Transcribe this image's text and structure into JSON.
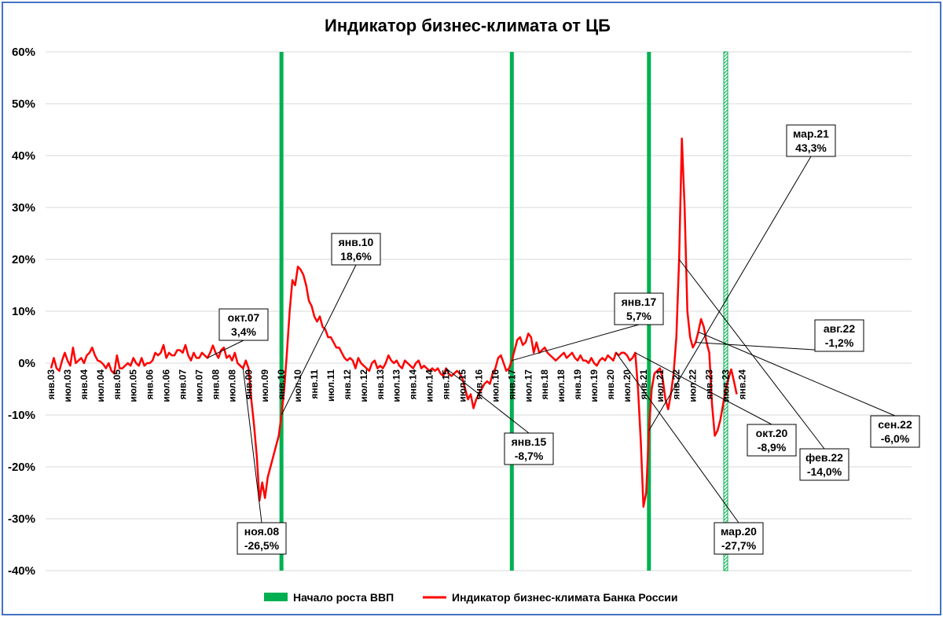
{
  "chart_data": {
    "type": "line",
    "title": "Индикатор бизнес-климата  от ЦБ",
    "ylim": [
      -40,
      60
    ],
    "y_ticks": [
      60,
      50,
      40,
      30,
      20,
      10,
      0,
      -10,
      -20,
      -30,
      -40
    ],
    "y_tick_labels": [
      "60%",
      "50%",
      "40%",
      "30%",
      "20%",
      "10%",
      "0%",
      "-10%",
      "-20%",
      "-30%",
      "-40%"
    ],
    "x_tick_labels": [
      "янв.03",
      "июл.03",
      "янв.04",
      "июл.04",
      "янв.05",
      "июл.05",
      "янв.06",
      "июл.06",
      "янв.07",
      "июл.07",
      "янв.08",
      "июл.08",
      "янв.09",
      "июл.09",
      "янв.10",
      "июл.10",
      "янв.11",
      "июл.11",
      "янв.12",
      "июл.12",
      "янв.13",
      "июл.13",
      "янв.14",
      "июл.14",
      "янв.15",
      "июл.15",
      "янв.16",
      "июл.16",
      "янв.17",
      "июл.17",
      "янв.18",
      "июл.18",
      "янв.19",
      "июл.19",
      "янв.20",
      "июл.20",
      "янв.21",
      "июл.21",
      "янв.22",
      "июл.22",
      "янв.23",
      "июл.23",
      "янв.24"
    ],
    "grid": true,
    "legend_position": "bottom",
    "gdp_growth_starts": [
      "янв.10",
      "янв.17",
      "мар.21",
      "июл.23"
    ],
    "series": [
      {
        "name": "Индикатор бизнес-климата Банка России",
        "color": "#ff0000",
        "x_start": "янв.03",
        "frequency": "monthly",
        "values": [
          -1,
          1,
          -1,
          -1.5,
          0.5,
          2,
          0.5,
          -0.5,
          3,
          0,
          0.5,
          1,
          0,
          1.5,
          2,
          3,
          1.5,
          0.5,
          0.3,
          -0.2,
          -1,
          0,
          -1.5,
          -2,
          1.5,
          -1,
          -1,
          -0.5,
          0,
          -0.5,
          1,
          0,
          -0.5,
          1,
          -0.5,
          0,
          0,
          0.5,
          2,
          1.5,
          2,
          3.5,
          1,
          2,
          1.5,
          1.5,
          2.5,
          2.5,
          2,
          3.5,
          1.5,
          0.5,
          2,
          1,
          1,
          2,
          1.5,
          1,
          2,
          3.4,
          2,
          1,
          2.5,
          3,
          1,
          1.5,
          0.5,
          2,
          0,
          -0.5,
          -1,
          0.5,
          -1,
          -7,
          -12,
          -18,
          -26.5,
          -23,
          -26,
          -22,
          -20,
          -18,
          -16,
          -14,
          -10,
          -5,
          2,
          10,
          16,
          15,
          18.6,
          18,
          17,
          15,
          12,
          11,
          9,
          8,
          9,
          7,
          6.5,
          5,
          5,
          4,
          3,
          3,
          2,
          1,
          0.5,
          1,
          0.5,
          -1,
          1,
          0,
          -0.5,
          -1,
          -1.5,
          0,
          0.5,
          -1,
          -0.5,
          -1,
          0,
          1.5,
          0.5,
          0,
          0.5,
          -0.5,
          -1,
          0.5,
          0,
          -0.5,
          -1,
          0,
          0.5,
          -1,
          -0.5,
          -1,
          -1.5,
          -1,
          -1.5,
          -1,
          -2,
          -2.5,
          -1,
          -2,
          -2.5,
          -2,
          -1.5,
          -2,
          -3,
          -5,
          -7,
          -6,
          -8.7,
          -7,
          -6,
          -5,
          -4,
          -3.5,
          -4,
          -2,
          -1,
          1,
          1.5,
          0,
          -1.5,
          -1,
          0.5,
          2.5,
          4.5,
          5,
          3.5,
          4,
          5.7,
          5,
          2,
          4,
          2,
          2.5,
          3,
          2,
          1.5,
          1,
          0.5,
          1,
          1.5,
          2,
          1,
          1.5,
          2,
          1,
          0.5,
          1.5,
          0.5,
          0.5,
          0,
          1,
          0,
          -0.5,
          0.5,
          1,
          0.5,
          1.5,
          1,
          0.5,
          2,
          1.5,
          2,
          2,
          1.5,
          0.5,
          1,
          2,
          -5,
          -15,
          -27.7,
          -25,
          -13,
          -5,
          -2,
          -1.5,
          -1,
          -3,
          -7,
          -8.9,
          -6,
          -2,
          5,
          20,
          43.3,
          30,
          10,
          5,
          3,
          4,
          6,
          8.5,
          7,
          4,
          2,
          -8,
          -14,
          -13,
          -11,
          -8,
          -5,
          -3,
          -1.2,
          -3.5,
          -6
        ]
      }
    ],
    "annotations": [
      {
        "label": "окт.07",
        "value": "3,4%"
      },
      {
        "label": "ноя.08",
        "value": "-26,5%"
      },
      {
        "label": "янв.10",
        "value": "18,6%"
      },
      {
        "label": "янв.15",
        "value": "-8,7%"
      },
      {
        "label": "янв.17",
        "value": "5,7%"
      },
      {
        "label": "мар.20",
        "value": "-27,7%"
      },
      {
        "label": "окт.20",
        "value": "-8,9%"
      },
      {
        "label": "мар.21",
        "value": "43,3%"
      },
      {
        "label": "фев.22",
        "value": "-14,0%"
      },
      {
        "label": "авг.22",
        "value": "-1,2%"
      },
      {
        "label": "сен.22",
        "value": "-6,0%"
      }
    ],
    "legend": [
      {
        "name": "Начало роста ВВП",
        "color": "#00b050"
      },
      {
        "name": "Индикатор бизнес-климата Банка России",
        "color": "#ff0000"
      }
    ]
  }
}
